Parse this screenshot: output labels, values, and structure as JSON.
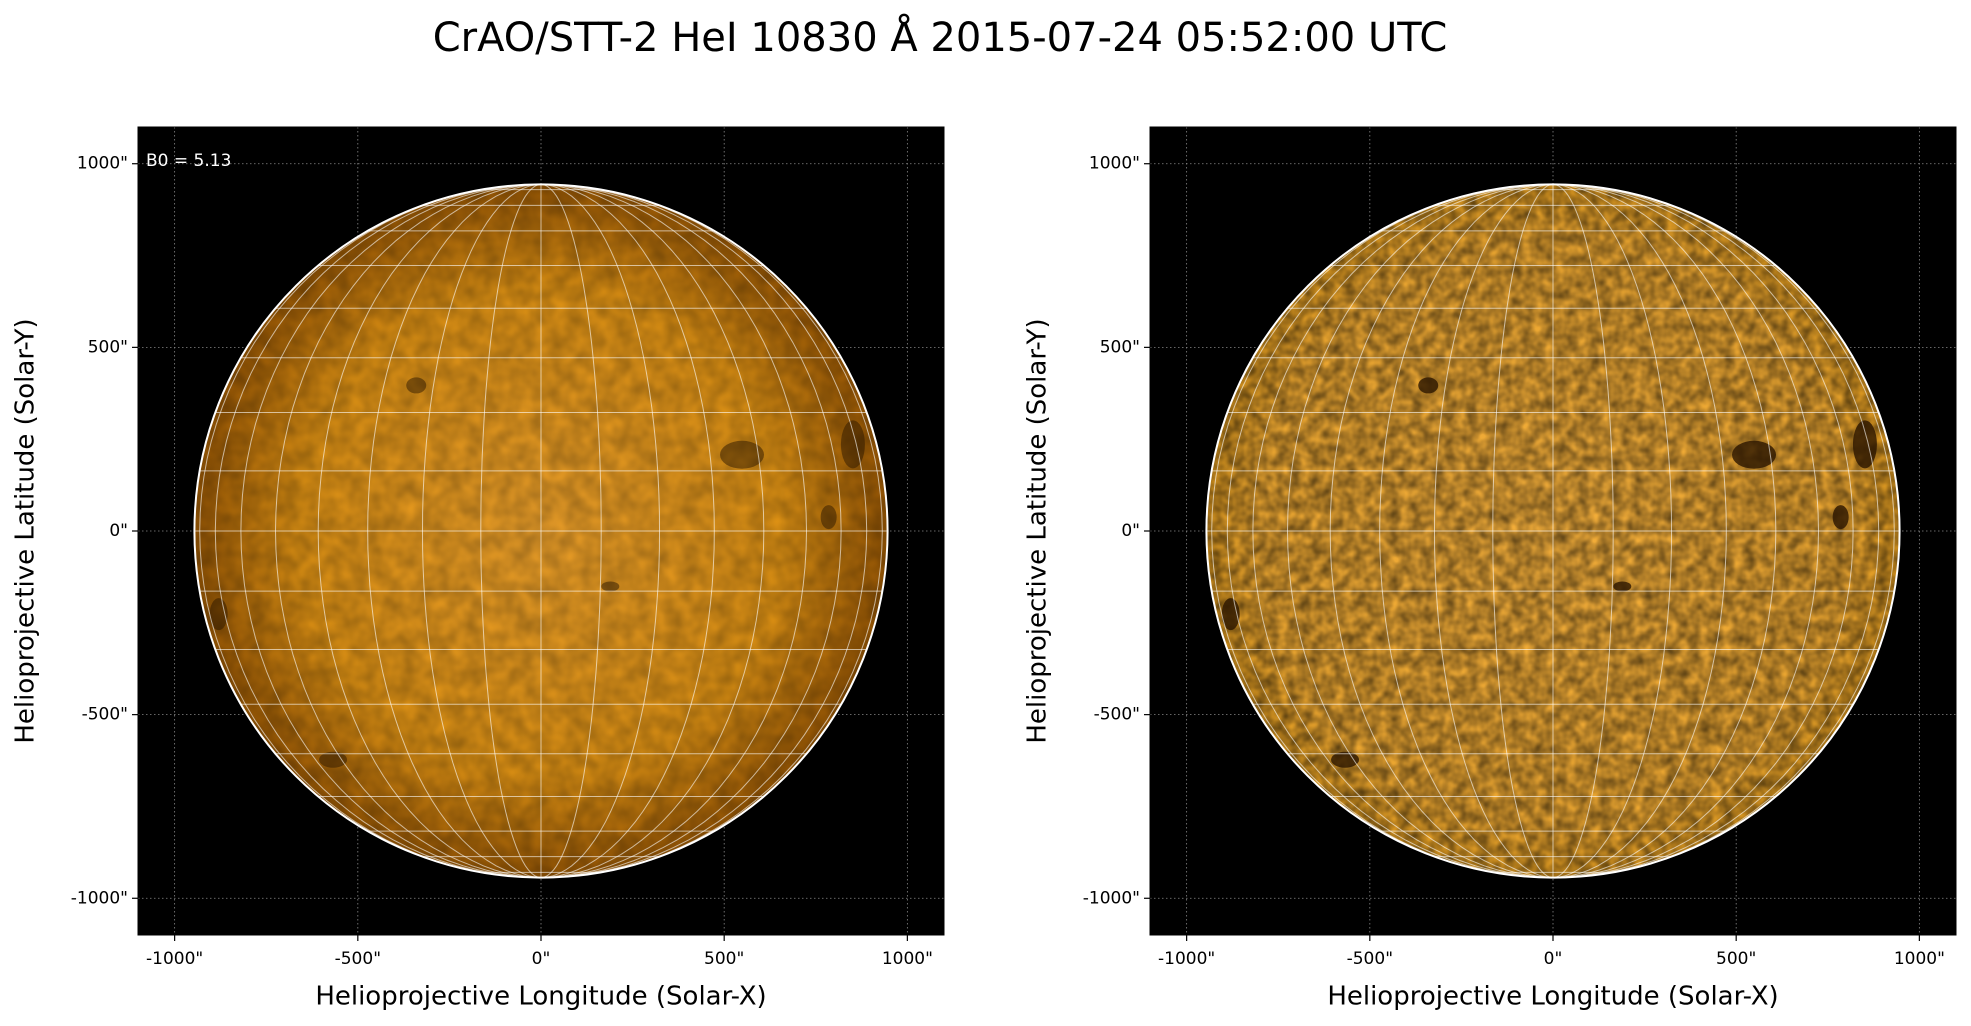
{
  "title": "CrAO/STT-2 HeI 10830 Å 2015-07-24 05:52:00 UTC",
  "chart_data": [
    {
      "type": "image",
      "xlabel": "Helioprojective Longitude (Solar-X)",
      "ylabel": "Helioprojective Latitude (Solar-Y)",
      "annotation": "B0 = 5.13",
      "xlim": [
        -1100,
        1100
      ],
      "ylim": [
        -1100,
        1100
      ],
      "xticks": [
        {
          "value": -1000,
          "label": "-1000\""
        },
        {
          "value": -500,
          "label": "-500\""
        },
        {
          "value": 0,
          "label": "0\""
        },
        {
          "value": 500,
          "label": "500\""
        },
        {
          "value": 1000,
          "label": "1000\""
        }
      ],
      "yticks": [
        {
          "value": -1000,
          "label": "-1000\""
        },
        {
          "value": -500,
          "label": "-500\""
        },
        {
          "value": 0,
          "label": "0\""
        },
        {
          "value": 500,
          "label": "500\""
        },
        {
          "value": 1000,
          "label": "1000\""
        }
      ],
      "grid": true
    },
    {
      "type": "image",
      "xlabel": "Helioprojective Longitude (Solar-X)",
      "ylabel": "Helioprojective Latitude (Solar-Y)",
      "xlim": [
        -1100,
        1100
      ],
      "ylim": [
        -1100,
        1100
      ],
      "xticks": [
        {
          "value": -1000,
          "label": "-1000\""
        },
        {
          "value": -500,
          "label": "-500\""
        },
        {
          "value": 0,
          "label": "0\""
        },
        {
          "value": 500,
          "label": "500\""
        },
        {
          "value": 1000,
          "label": "1000\""
        }
      ],
      "yticks": [
        {
          "value": -1000,
          "label": "-1000\""
        },
        {
          "value": -500,
          "label": "-500\""
        },
        {
          "value": 0,
          "label": "0\""
        },
        {
          "value": 500,
          "label": "500\""
        },
        {
          "value": 1000,
          "label": "1000\""
        }
      ],
      "grid": true
    }
  ]
}
